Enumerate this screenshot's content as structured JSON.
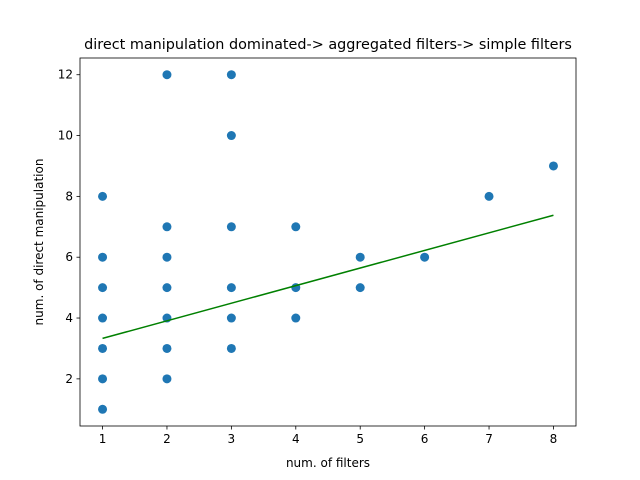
{
  "chart_data": {
    "type": "scatter",
    "title": "direct manipulation dominated-> aggregated filters-> simple filters",
    "xlabel": "num. of filters",
    "ylabel": "num. of direct manipulation",
    "xlim": [
      0.65,
      8.35
    ],
    "ylim": [
      0.45,
      12.55
    ],
    "xticks": [
      1,
      2,
      3,
      4,
      5,
      6,
      7,
      8
    ],
    "yticks": [
      2,
      4,
      6,
      8,
      10,
      12
    ],
    "grid": false,
    "series": [
      {
        "kind": "points",
        "color": "#1f77b4",
        "points": [
          [
            1,
            1
          ],
          [
            1,
            2
          ],
          [
            1,
            3
          ],
          [
            1,
            4
          ],
          [
            1,
            5
          ],
          [
            1,
            6
          ],
          [
            1,
            8
          ],
          [
            2,
            2
          ],
          [
            2,
            3
          ],
          [
            2,
            4
          ],
          [
            2,
            5
          ],
          [
            2,
            6
          ],
          [
            2,
            7
          ],
          [
            2,
            12
          ],
          [
            3,
            3
          ],
          [
            3,
            4
          ],
          [
            3,
            5
          ],
          [
            3,
            7
          ],
          [
            3,
            10
          ],
          [
            3,
            12
          ],
          [
            4,
            4
          ],
          [
            4,
            5
          ],
          [
            4,
            7
          ],
          [
            5,
            5
          ],
          [
            5,
            6
          ],
          [
            6,
            6
          ],
          [
            7,
            8
          ],
          [
            8,
            9
          ]
        ]
      },
      {
        "kind": "fit-line",
        "color": "#008000",
        "points": [
          [
            1,
            3.33
          ],
          [
            8,
            7.38
          ]
        ]
      }
    ]
  }
}
